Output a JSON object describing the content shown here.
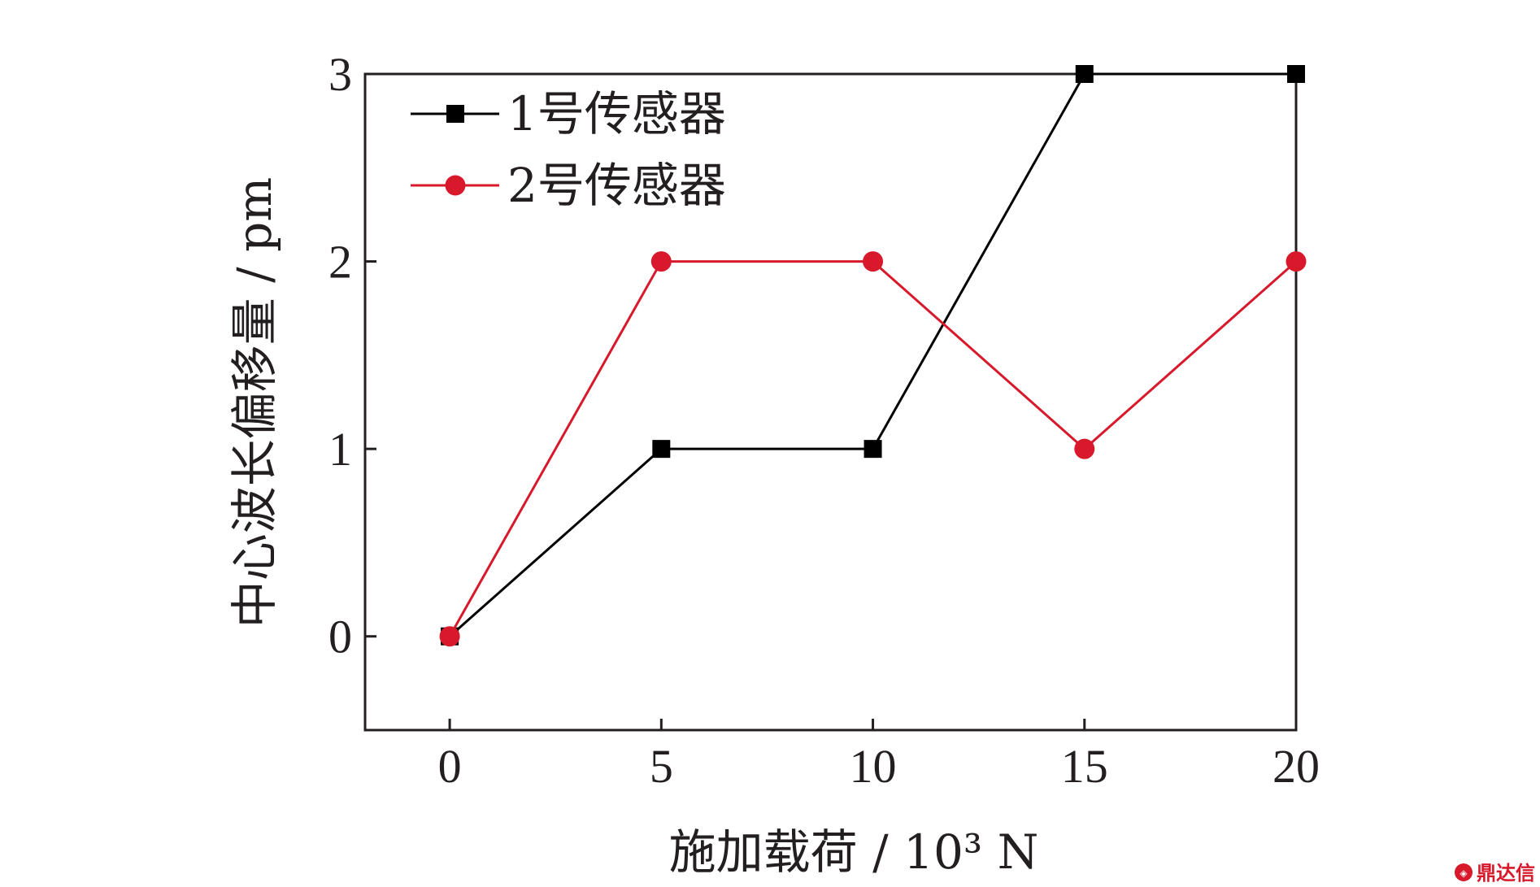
{
  "chart_data": {
    "type": "line",
    "x": [
      0,
      5,
      10,
      15,
      20
    ],
    "series": [
      {
        "name": "1号传感器",
        "values": [
          0,
          1,
          1,
          3,
          3
        ],
        "color": "#000000",
        "marker": "square"
      },
      {
        "name": "2号传感器",
        "values": [
          0,
          2,
          2,
          1,
          2
        ],
        "color": "#d7192b",
        "marker": "circle"
      }
    ],
    "title": "",
    "xlabel": "施加载荷 / 10³ N",
    "ylabel": "中心波长偏移量 / pm",
    "xlim": [
      -2,
      20
    ],
    "ylim": [
      -0.5,
      3
    ],
    "xticks": [
      "0",
      "5",
      "10",
      "15",
      "20"
    ],
    "yticks": [
      "0",
      "1",
      "2",
      "3"
    ],
    "grid": false,
    "legend_position": "top-left"
  },
  "watermark": {
    "text": "鼎达信",
    "color": "#d7192b"
  }
}
